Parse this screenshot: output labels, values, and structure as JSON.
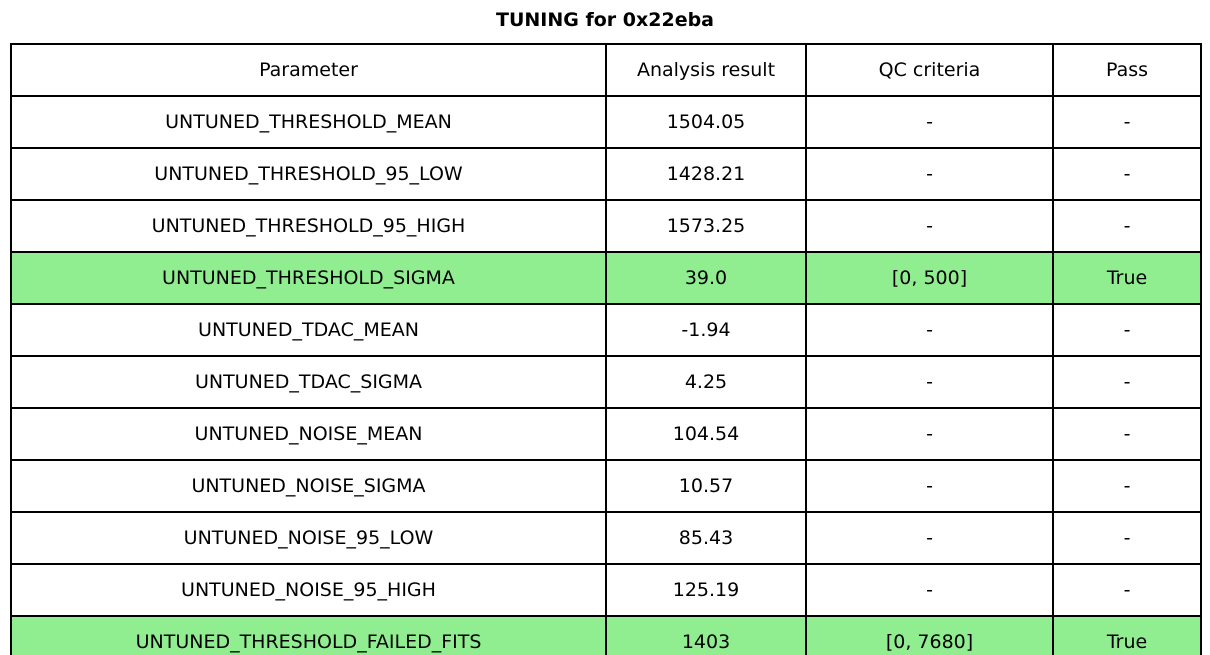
{
  "chart_data": {
    "type": "table",
    "title": "TUNING for 0x22eba",
    "columns": [
      "Parameter",
      "Analysis result",
      "QC criteria",
      "Pass"
    ],
    "rows": [
      {
        "parameter": "UNTUNED_THRESHOLD_MEAN",
        "analysis_result": "1504.05",
        "qc_criteria": "-",
        "pass": "-",
        "highlight": false
      },
      {
        "parameter": "UNTUNED_THRESHOLD_95_LOW",
        "analysis_result": "1428.21",
        "qc_criteria": "-",
        "pass": "-",
        "highlight": false
      },
      {
        "parameter": "UNTUNED_THRESHOLD_95_HIGH",
        "analysis_result": "1573.25",
        "qc_criteria": "-",
        "pass": "-",
        "highlight": false
      },
      {
        "parameter": "UNTUNED_THRESHOLD_SIGMA",
        "analysis_result": "39.0",
        "qc_criteria": "[0, 500]",
        "pass": "True",
        "highlight": true
      },
      {
        "parameter": "UNTUNED_TDAC_MEAN",
        "analysis_result": "-1.94",
        "qc_criteria": "-",
        "pass": "-",
        "highlight": false
      },
      {
        "parameter": "UNTUNED_TDAC_SIGMA",
        "analysis_result": "4.25",
        "qc_criteria": "-",
        "pass": "-",
        "highlight": false
      },
      {
        "parameter": "UNTUNED_NOISE_MEAN",
        "analysis_result": "104.54",
        "qc_criteria": "-",
        "pass": "-",
        "highlight": false
      },
      {
        "parameter": "UNTUNED_NOISE_SIGMA",
        "analysis_result": "10.57",
        "qc_criteria": "-",
        "pass": "-",
        "highlight": false
      },
      {
        "parameter": "UNTUNED_NOISE_95_LOW",
        "analysis_result": "85.43",
        "qc_criteria": "-",
        "pass": "-",
        "highlight": false
      },
      {
        "parameter": "UNTUNED_NOISE_95_HIGH",
        "analysis_result": "125.19",
        "qc_criteria": "-",
        "pass": "-",
        "highlight": false
      },
      {
        "parameter": "UNTUNED_THRESHOLD_FAILED_FITS",
        "analysis_result": "1403",
        "qc_criteria": "[0, 7680]",
        "pass": "True",
        "highlight": true
      }
    ],
    "highlighted_rows": [
      "UNTUNED_THRESHOLD_SIGMA",
      "UNTUNED_THRESHOLD_FAILED_FITS"
    ],
    "highlight_color": "#90EE90",
    "colors": {
      "text": "#000000",
      "border": "#000000",
      "background": "#ffffff"
    },
    "layout": {
      "legend": "none",
      "grid": "table-borders"
    }
  }
}
